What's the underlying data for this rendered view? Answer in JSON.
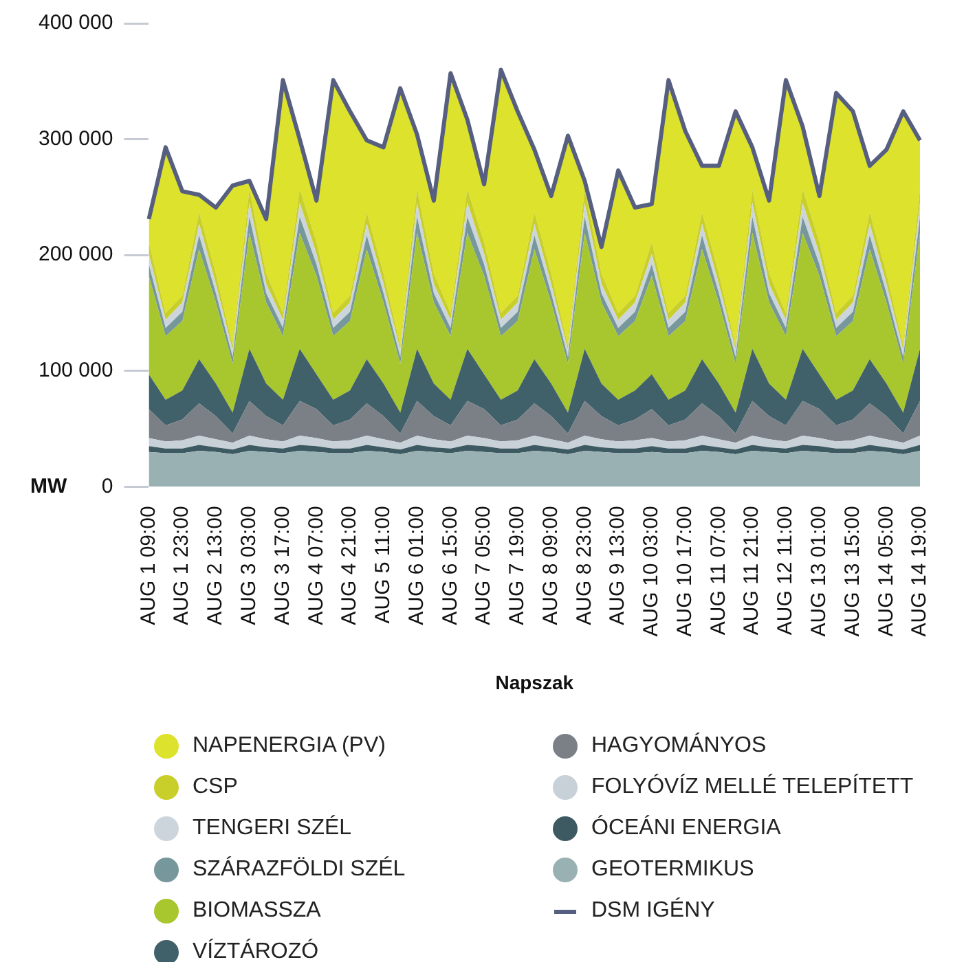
{
  "chart_data": {
    "type": "area",
    "stacked": true,
    "xlabel": "Napszak",
    "ylabel": "MW",
    "grid": false,
    "legend": "bottom",
    "marker": "none",
    "line_style": "solid",
    "categories": [
      "AUG 1 09:00",
      null,
      "AUG 1 23:00",
      null,
      "AUG 2 13:00",
      null,
      "AUG 3 03:00",
      null,
      "AUG 3 17:00",
      null,
      "AUG 4 07:00",
      null,
      "AUG 4 21:00",
      null,
      "AUG 5 11:00",
      null,
      "AUG 6 01:00",
      null,
      "AUG 6 15:00",
      null,
      "AUG 7 05:00",
      null,
      "AUG 7 19:00",
      null,
      "AUG 8 09:00",
      null,
      "AUG 8 23:00",
      null,
      "AUG 9 13:00",
      null,
      "AUG 10 03:00",
      null,
      "AUG 10 17:00",
      null,
      "AUG 11 07:00",
      null,
      "AUG 11 21:00",
      null,
      "AUG 12 11:00",
      null,
      "AUG 13 01:00",
      null,
      "AUG 13 15:00",
      null,
      "AUG 14 05:00",
      null,
      "AUG 14 19:00"
    ],
    "ylim": [
      0,
      400000
    ],
    "yticks": [
      0,
      {
        "value": 100000,
        "label": "100 000"
      },
      {
        "value": 200000,
        "label": "200 000"
      },
      {
        "value": 300000,
        "label": "300 000"
      },
      {
        "value": 400000,
        "label": "400 000"
      }
    ],
    "series": [
      {
        "name": "GEOTERMIKUS",
        "color": "#9ab1b3",
        "values": [
          30000,
          29000,
          29000,
          31000,
          30000,
          28000,
          31000,
          30000,
          29000,
          31000,
          30000,
          29000,
          29000,
          31000,
          30000,
          28000,
          31000,
          30000,
          29000,
          31000,
          30000,
          29000,
          29000,
          31000,
          30000,
          28000,
          31000,
          30000,
          29000,
          29000,
          30000,
          29000,
          29000,
          31000,
          30000,
          28000,
          31000,
          30000,
          29000,
          31000,
          30000,
          29000,
          29000,
          31000,
          30000,
          28000,
          31000
        ]
      },
      {
        "name": "ÓCEÁNI ENERGIA",
        "color": "#3d5a62",
        "values": [
          5000,
          4000,
          4000,
          5000,
          4000,
          4000,
          5000,
          4000,
          4000,
          5000,
          5000,
          4000,
          4000,
          5000,
          4000,
          4000,
          5000,
          4000,
          4000,
          5000,
          5000,
          4000,
          4000,
          5000,
          4000,
          4000,
          5000,
          4000,
          4000,
          4000,
          5000,
          4000,
          4000,
          5000,
          4000,
          4000,
          5000,
          4000,
          4000,
          5000,
          5000,
          4000,
          4000,
          5000,
          4000,
          4000,
          5000
        ]
      },
      {
        "name": "FOLYÓVÍZ MELLÉ TELEPÍTETT",
        "color": "#c9d1d8",
        "values": [
          7000,
          6000,
          7000,
          8000,
          7000,
          6000,
          8000,
          7000,
          6000,
          8000,
          7000,
          6000,
          7000,
          8000,
          7000,
          6000,
          8000,
          7000,
          6000,
          8000,
          7000,
          6000,
          7000,
          8000,
          7000,
          6000,
          8000,
          7000,
          6000,
          7000,
          7000,
          6000,
          7000,
          8000,
          7000,
          6000,
          8000,
          7000,
          6000,
          8000,
          7000,
          6000,
          7000,
          8000,
          7000,
          6000,
          8000
        ]
      },
      {
        "name": "HAGYOMÁNYOS",
        "color": "#7b8086",
        "values": [
          25000,
          14000,
          18000,
          28000,
          20000,
          8000,
          30000,
          20000,
          14000,
          30000,
          25000,
          14000,
          18000,
          28000,
          20000,
          8000,
          30000,
          20000,
          14000,
          30000,
          25000,
          14000,
          18000,
          28000,
          20000,
          8000,
          30000,
          20000,
          14000,
          18000,
          25000,
          14000,
          18000,
          28000,
          20000,
          8000,
          30000,
          20000,
          14000,
          30000,
          25000,
          14000,
          18000,
          28000,
          20000,
          8000,
          30000
        ]
      },
      {
        "name": "VÍZTÁROZÓ",
        "color": "#40606a",
        "values": [
          30000,
          22000,
          25000,
          38000,
          28000,
          18000,
          45000,
          28000,
          22000,
          45000,
          30000,
          22000,
          25000,
          38000,
          28000,
          18000,
          45000,
          28000,
          22000,
          45000,
          30000,
          22000,
          25000,
          38000,
          28000,
          18000,
          45000,
          28000,
          22000,
          25000,
          30000,
          22000,
          25000,
          38000,
          28000,
          18000,
          45000,
          28000,
          22000,
          45000,
          30000,
          22000,
          25000,
          38000,
          28000,
          18000,
          45000
        ]
      },
      {
        "name": "BIOMASSZA",
        "color": "#a8c62d",
        "values": [
          85000,
          55000,
          60000,
          95000,
          70000,
          42000,
          100000,
          70000,
          55000,
          100000,
          85000,
          55000,
          60000,
          95000,
          70000,
          42000,
          100000,
          70000,
          55000,
          100000,
          85000,
          55000,
          60000,
          95000,
          70000,
          42000,
          100000,
          70000,
          55000,
          60000,
          85000,
          55000,
          60000,
          95000,
          70000,
          42000,
          100000,
          70000,
          55000,
          100000,
          85000,
          55000,
          60000,
          95000,
          70000,
          42000,
          100000
        ]
      },
      {
        "name": "SZÁRAZFÖLDI SZÉL",
        "color": "#76989c",
        "values": [
          10000,
          7000,
          8000,
          12000,
          8000,
          6000,
          14000,
          8000,
          7000,
          14000,
          10000,
          7000,
          8000,
          12000,
          8000,
          6000,
          14000,
          8000,
          7000,
          14000,
          10000,
          7000,
          8000,
          12000,
          8000,
          6000,
          14000,
          8000,
          7000,
          8000,
          10000,
          7000,
          8000,
          12000,
          8000,
          6000,
          14000,
          8000,
          7000,
          14000,
          10000,
          7000,
          8000,
          12000,
          8000,
          6000,
          14000
        ]
      },
      {
        "name": "TENGERI SZÉL",
        "color": "#cdd5dc",
        "values": [
          9000,
          7000,
          8000,
          10000,
          8000,
          6000,
          12000,
          8000,
          7000,
          12000,
          9000,
          7000,
          8000,
          10000,
          8000,
          6000,
          12000,
          8000,
          7000,
          12000,
          9000,
          7000,
          8000,
          10000,
          8000,
          6000,
          12000,
          8000,
          7000,
          8000,
          9000,
          7000,
          8000,
          10000,
          8000,
          6000,
          12000,
          8000,
          7000,
          12000,
          9000,
          7000,
          8000,
          10000,
          8000,
          6000,
          12000
        ]
      },
      {
        "name": "CSP",
        "color": "#c9cf2a",
        "values": [
          10000,
          6000,
          6000,
          10000,
          9000,
          4000,
          12000,
          9000,
          6000,
          12000,
          10000,
          6000,
          6000,
          10000,
          9000,
          4000,
          12000,
          9000,
          6000,
          12000,
          10000,
          6000,
          6000,
          10000,
          9000,
          4000,
          12000,
          9000,
          6000,
          6000,
          10000,
          6000,
          6000,
          10000,
          9000,
          4000,
          12000,
          9000,
          6000,
          12000,
          10000,
          6000,
          6000,
          10000,
          9000,
          4000,
          12000
        ]
      },
      {
        "name": "NAPENERGIA (PV)",
        "color": "#dde22c",
        "values": [
          20000,
          143000,
          90000,
          15000,
          57000,
          138000,
          7000,
          47000,
          201000,
          43000,
          36000,
          201000,
          159000,
          62000,
          109000,
          222000,
          47000,
          63000,
          207000,
          60000,
          50000,
          210000,
          159000,
          54000,
          67000,
          181000,
          7000,
          23000,
          123000,
          76000,
          33000,
          201000,
          142000,
          40000,
          93000,
          202000,
          36000,
          63000,
          201000,
          54000,
          40000,
          190000,
          159000,
          40000,
          107000,
          202000,
          42000
        ]
      },
      {
        "name": "DSM IGÉNY",
        "type": "line",
        "color": "#565f80",
        "values": [
          231000,
          293000,
          255000,
          252000,
          241000,
          260000,
          264000,
          231000,
          351000,
          300000,
          247000,
          351000,
          324000,
          299000,
          293000,
          344000,
          304000,
          247000,
          357000,
          317000,
          261000,
          360000,
          324000,
          291000,
          251000,
          303000,
          264000,
          207000,
          273000,
          241000,
          244000,
          351000,
          307000,
          277000,
          277000,
          324000,
          293000,
          247000,
          351000,
          311000,
          251000,
          340000,
          324000,
          277000,
          291000,
          324000,
          299000
        ]
      }
    ]
  }
}
